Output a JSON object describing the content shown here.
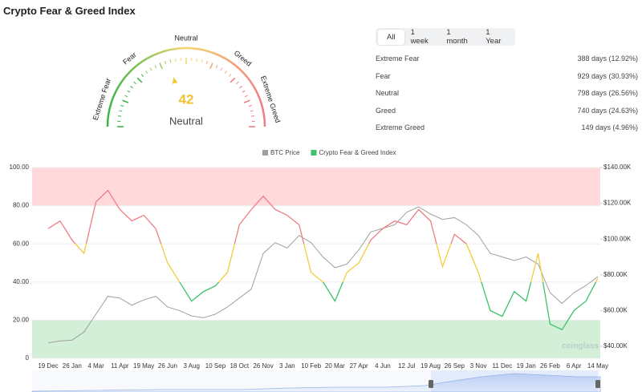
{
  "title": "Crypto Fear & Greed Index",
  "gauge": {
    "value": 42,
    "status": "Neutral",
    "range": [
      0,
      100
    ],
    "labels": [
      "Extreme Fear",
      "Fear",
      "Neutral",
      "Greed",
      "Extreme Greed"
    ]
  },
  "tabs": [
    "All",
    "1 week",
    "1 month",
    "1 Year"
  ],
  "stats": [
    {
      "label": "Extreme Fear",
      "value": "388 days (12.92%)"
    },
    {
      "label": "Fear",
      "value": "929 days (30.93%)"
    },
    {
      "label": "Neutral",
      "value": "798 days (26.56%)"
    },
    {
      "label": "Greed",
      "value": "740 days (24.63%)"
    },
    {
      "label": "Extreme Greed",
      "value": "149 days (4.96%)"
    }
  ],
  "watermark": "coinglass",
  "chart_data": {
    "type": "line",
    "categories": [
      "19 Dec",
      null,
      "26 Jan",
      null,
      "4 Mar",
      null,
      "11 Apr",
      null,
      "19 May",
      null,
      "26 Jun",
      null,
      "3 Aug",
      null,
      "10 Sep",
      null,
      "18 Oct",
      null,
      "26 Nov",
      null,
      "3 Jan",
      null,
      "10 Feb",
      null,
      "20 Mar",
      null,
      "27 Apr",
      null,
      "4 Jun",
      null,
      "12 Jul",
      null,
      "19 Aug",
      null,
      "26 Sep",
      null,
      "3 Nov",
      null,
      "11 Dec",
      null,
      "19 Jan",
      null,
      "26 Feb",
      null,
      "6 Apr",
      null,
      "14 May"
    ],
    "series": [
      {
        "name": "BTC Price",
        "color": "#a0a0a0",
        "axis": "y2",
        "values": [
          42000,
          43000,
          43500,
          48000,
          58000,
          68000,
          67000,
          63000,
          66000,
          68000,
          62000,
          60000,
          57000,
          56000,
          58000,
          62000,
          67000,
          72000,
          92000,
          98000,
          95000,
          102000,
          98000,
          90000,
          84000,
          86000,
          94000,
          104000,
          106000,
          108000,
          115000,
          118000,
          114000,
          111000,
          112000,
          108000,
          102000,
          92000,
          90000,
          88000,
          90000,
          86000,
          70000,
          64000,
          70000,
          74000,
          79000
        ]
      },
      {
        "name": "Crypto Fear & Greed Index",
        "color": "#3cc26a",
        "values": [
          68,
          72,
          62,
          55,
          82,
          88,
          78,
          72,
          75,
          68,
          50,
          40,
          30,
          35,
          38,
          45,
          70,
          78,
          85,
          78,
          75,
          70,
          45,
          40,
          30,
          45,
          50,
          62,
          68,
          72,
          70,
          78,
          72,
          48,
          65,
          60,
          45,
          25,
          22,
          35,
          30,
          55,
          18,
          15,
          25,
          30,
          42
        ]
      }
    ],
    "color_scale": [
      {
        "below": 40,
        "color": "#3cc26a"
      },
      {
        "below": 60,
        "color": "#f2cc3c"
      },
      {
        "below": 100,
        "color": "#f07c84"
      }
    ],
    "bands": [
      {
        "from": 0,
        "to": 20,
        "color": "#d3efd7"
      },
      {
        "from": 80,
        "to": 100,
        "color": "#ffd9db"
      }
    ],
    "ylim": [
      0,
      100
    ],
    "yticks": [
      0,
      {
        "value": 20,
        "label": "20.00"
      },
      {
        "value": 40,
        "label": "40.00"
      },
      {
        "value": 60,
        "label": "60.00"
      },
      {
        "value": 80,
        "label": "80.00"
      },
      {
        "value": 100,
        "label": "100.00"
      }
    ],
    "y2lim": [
      33300,
      140000
    ],
    "y2ticks": [
      {
        "value": 40000,
        "label": "$40.00K"
      },
      {
        "value": 60000,
        "label": "$60.00K"
      },
      {
        "value": 80000,
        "label": "$80.00K"
      },
      {
        "value": 100000,
        "label": "$100.00K"
      },
      {
        "value": 120000,
        "label": "$120.00K"
      },
      {
        "value": 140000,
        "label": "$140.00K"
      }
    ],
    "grid": true,
    "legend": "top"
  }
}
